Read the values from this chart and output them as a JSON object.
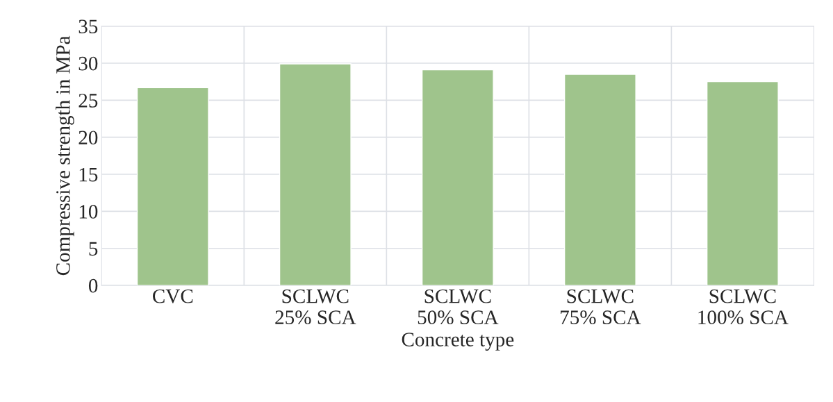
{
  "chart_data": {
    "type": "bar",
    "xlabel": "Concrete type",
    "ylabel": "Compressive strength in MPa",
    "categories": [
      "CVC",
      "SCLWC\n25% SCA",
      "SCLWC\n50% SCA",
      "SCLWC\n75% SCA",
      "SCLWC\n100% SCA"
    ],
    "values": [
      26.7,
      29.9,
      29.1,
      28.5,
      27.5
    ],
    "color": "#9fc48c",
    "ylim": [
      0,
      35
    ],
    "yticks": [
      0,
      5,
      10,
      15,
      20,
      25,
      30,
      35
    ],
    "grid": true
  }
}
